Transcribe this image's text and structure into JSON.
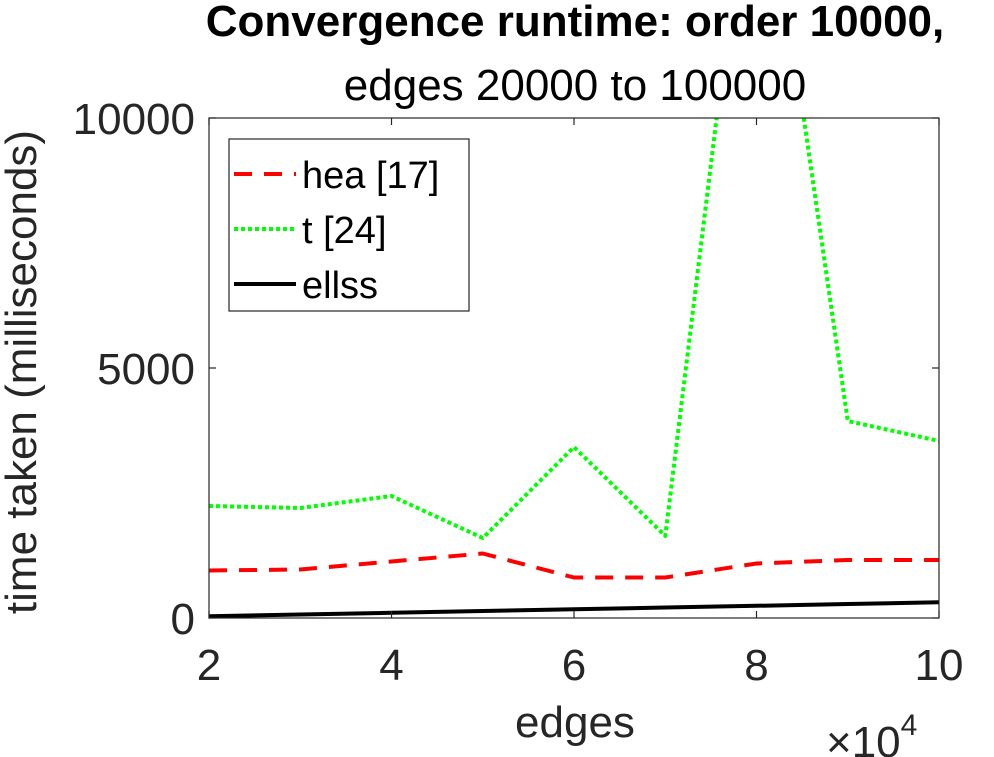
{
  "chart_data": {
    "type": "line",
    "title": "Convergence runtime: order 10000,",
    "subtitle": "edges 20000 to 100000",
    "xlabel": "edges",
    "ylabel": "time taken (milliseconds)",
    "x_multiplier_label": "×10",
    "x_multiplier_exponent": "4",
    "xlim": [
      2,
      10
    ],
    "ylim": [
      0,
      10000
    ],
    "xticks": [
      2,
      4,
      6,
      8,
      10
    ],
    "xtick_labels": [
      "2",
      "4",
      "6",
      "8",
      "10"
    ],
    "yticks": [
      0,
      5000,
      10000
    ],
    "ytick_labels": [
      "0",
      "5000",
      "10000"
    ],
    "grid": false,
    "legend_location": "top-left",
    "x": [
      2,
      3,
      4,
      5,
      6,
      7,
      8,
      9,
      10
    ],
    "series": [
      {
        "name": "hea [17]",
        "color": "#ff0000",
        "style": "dashed",
        "values": [
          950,
          970,
          1130,
          1290,
          810,
          810,
          1090,
          1160,
          1160
        ]
      },
      {
        "name": "t [24]",
        "color": "#00ff00",
        "style": "dotted",
        "values": [
          2240,
          2200,
          2440,
          1600,
          3420,
          1640,
          16500,
          3940,
          3540
        ]
      },
      {
        "name": "ellss",
        "color": "#000000",
        "style": "solid",
        "values": [
          35,
          70,
          105,
          140,
          175,
          210,
          245,
          280,
          315
        ]
      }
    ]
  }
}
